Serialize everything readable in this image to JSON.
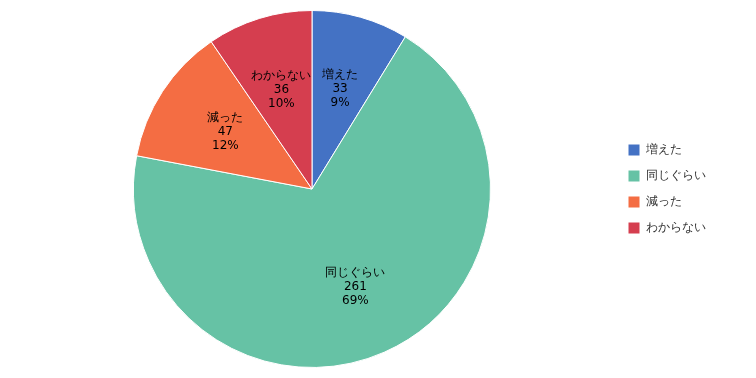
{
  "chart_data": {
    "type": "pie",
    "categories": [
      "増えた",
      "同じぐらい",
      "減った",
      "わからない"
    ],
    "values": [
      33,
      261,
      47,
      36
    ],
    "percentages": [
      9,
      69,
      12,
      10
    ],
    "percentage_labels": [
      "9%",
      "69%",
      "12%",
      "10%"
    ],
    "colors": [
      "#4472c4",
      "#66c2a5",
      "#f46d43",
      "#d53e4f"
    ],
    "data_labels": true,
    "legend": "right"
  }
}
